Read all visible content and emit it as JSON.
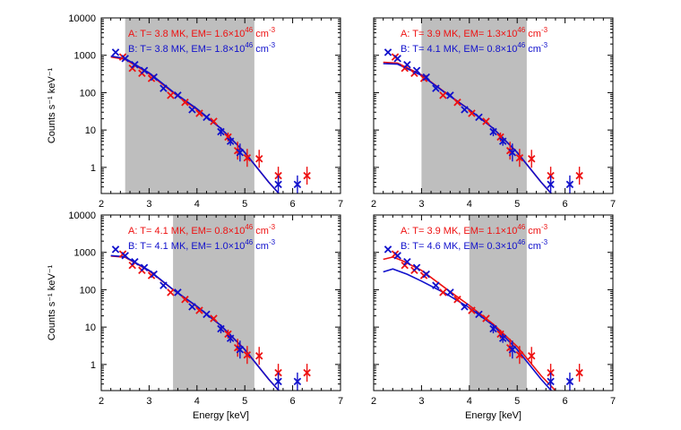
{
  "chart_data": [
    {
      "type": "scatter",
      "panel": "top-left",
      "xlabel": "",
      "ylabel": "Counts s⁻¹ keV⁻¹",
      "xlim": [
        2,
        7
      ],
      "ylim": [
        0.2,
        10000
      ],
      "ylog": true,
      "xticks": [
        "2",
        "3",
        "4",
        "5",
        "6",
        "7"
      ],
      "yticks": [
        "1",
        "10",
        "100",
        "1000",
        "10000"
      ],
      "shaded_range": [
        2.5,
        5.2
      ],
      "legend": [
        {
          "name": "A",
          "color": "#ee1111",
          "line1": "A: T= 3.8 MK, EM= 1.6×10",
          "exp": "46",
          "unit": " cm",
          "unit_exp": "-3"
        },
        {
          "name": "B",
          "color": "#1111cc",
          "line1": "B: T= 3.8 MK, EM= 1.8×10",
          "exp": "46",
          "unit": " cm",
          "unit_exp": "-3"
        }
      ],
      "series": [
        {
          "name": "A data",
          "color": "#ee1111",
          "x": [
            2.45,
            2.65,
            2.85,
            3.05,
            3.45,
            3.75,
            4.05,
            4.35,
            4.65,
            4.85,
            5.05,
            5.3,
            5.7,
            6.3
          ],
          "y": [
            900,
            450,
            330,
            240,
            85,
            55,
            28,
            17,
            6.5,
            2.8,
            1.8,
            1.7,
            0.6,
            0.6
          ]
        },
        {
          "name": "B data",
          "color": "#1111cc",
          "x": [
            2.3,
            2.5,
            2.7,
            2.9,
            3.1,
            3.3,
            3.6,
            3.9,
            4.2,
            4.5,
            4.7,
            4.9,
            5.7,
            6.1
          ],
          "y": [
            1200,
            820,
            560,
            390,
            260,
            130,
            85,
            35,
            22,
            9,
            5,
            2.5,
            0.35,
            0.35
          ]
        },
        {
          "name": "A model",
          "color": "#ee1111",
          "line": true,
          "x": [
            2.2,
            2.5,
            3.0,
            3.5,
            4.0,
            4.5,
            5.0,
            5.5,
            5.8
          ],
          "y": [
            900,
            780,
            320,
            100,
            35,
            11,
            2.5,
            0.4,
            0.15
          ]
        },
        {
          "name": "B model",
          "color": "#1111cc",
          "line": true,
          "x": [
            2.2,
            2.5,
            3.0,
            3.5,
            4.0,
            4.5,
            5.0,
            5.5,
            5.8
          ],
          "y": [
            950,
            820,
            340,
            105,
            37,
            11,
            2.5,
            0.4,
            0.15
          ]
        }
      ]
    },
    {
      "type": "scatter",
      "panel": "top-right",
      "xlabel": "",
      "ylabel": "",
      "xlim": [
        2,
        7
      ],
      "ylim": [
        0.2,
        10000
      ],
      "ylog": true,
      "xticks": [
        "2",
        "3",
        "4",
        "5",
        "6",
        "7"
      ],
      "yticks": [],
      "shaded_range": [
        3.0,
        5.2
      ],
      "legend": [
        {
          "name": "A",
          "color": "#ee1111",
          "line1": "A: T= 3.9 MK, EM= 1.3×10",
          "exp": "46",
          "unit": " cm",
          "unit_exp": "-3"
        },
        {
          "name": "B",
          "color": "#1111cc",
          "line1": "B: T= 4.1 MK, EM= 0.8×10",
          "exp": "46",
          "unit": " cm",
          "unit_exp": "-3"
        }
      ],
      "series": [
        {
          "name": "A data",
          "color": "#ee1111",
          "x": [
            2.45,
            2.65,
            2.85,
            3.05,
            3.45,
            3.75,
            4.05,
            4.35,
            4.65,
            4.85,
            5.05,
            5.3,
            5.7,
            6.3
          ],
          "y": [
            900,
            450,
            330,
            240,
            85,
            55,
            28,
            17,
            6.5,
            2.8,
            1.8,
            1.7,
            0.6,
            0.6
          ]
        },
        {
          "name": "B data",
          "color": "#1111cc",
          "x": [
            2.3,
            2.5,
            2.7,
            2.9,
            3.1,
            3.3,
            3.6,
            3.9,
            4.2,
            4.5,
            4.7,
            4.9,
            5.7,
            6.1
          ],
          "y": [
            1200,
            820,
            560,
            390,
            260,
            130,
            85,
            35,
            22,
            9,
            5,
            2.5,
            0.35,
            0.35
          ]
        },
        {
          "name": "A model",
          "color": "#ee1111",
          "line": true,
          "x": [
            2.2,
            2.5,
            3.0,
            3.5,
            4.0,
            4.5,
            5.0,
            5.5,
            5.8
          ],
          "y": [
            650,
            620,
            300,
            100,
            35,
            11,
            2.5,
            0.4,
            0.15
          ]
        },
        {
          "name": "B model",
          "color": "#1111cc",
          "line": true,
          "x": [
            2.2,
            2.5,
            3.0,
            3.5,
            4.0,
            4.5,
            5.0,
            5.5,
            5.8
          ],
          "y": [
            600,
            580,
            290,
            98,
            35,
            11,
            2.5,
            0.4,
            0.15
          ]
        }
      ]
    },
    {
      "type": "scatter",
      "panel": "bottom-left",
      "xlabel": "Energy [keV]",
      "ylabel": "Counts s⁻¹ keV⁻¹",
      "xlim": [
        2,
        7
      ],
      "ylim": [
        0.2,
        10000
      ],
      "ylog": true,
      "xticks": [
        "2",
        "3",
        "4",
        "5",
        "6",
        "7"
      ],
      "yticks": [
        "1",
        "10",
        "100",
        "1000",
        "10000"
      ],
      "shaded_range": [
        3.5,
        5.2
      ],
      "legend": [
        {
          "name": "A",
          "color": "#ee1111",
          "line1": "A: T= 4.1 MK, EM= 0.8×10",
          "exp": "46",
          "unit": " cm",
          "unit_exp": "-3"
        },
        {
          "name": "B",
          "color": "#1111cc",
          "line1": "B: T= 4.1 MK, EM= 1.0×10",
          "exp": "46",
          "unit": " cm",
          "unit_exp": "-3"
        }
      ],
      "series": [
        {
          "name": "A data",
          "color": "#ee1111",
          "x": [
            2.45,
            2.65,
            2.85,
            3.05,
            3.45,
            3.75,
            4.05,
            4.35,
            4.65,
            4.85,
            5.05,
            5.3,
            5.7,
            6.3
          ],
          "y": [
            900,
            450,
            330,
            240,
            85,
            55,
            28,
            17,
            6.5,
            2.8,
            1.8,
            1.7,
            0.6,
            0.6
          ]
        },
        {
          "name": "B data",
          "color": "#1111cc",
          "x": [
            2.3,
            2.5,
            2.7,
            2.9,
            3.1,
            3.3,
            3.6,
            3.9,
            4.2,
            4.5,
            4.7,
            4.9,
            5.7,
            6.1
          ],
          "y": [
            1200,
            820,
            560,
            390,
            260,
            130,
            85,
            35,
            22,
            9,
            5,
            2.5,
            0.35,
            0.35
          ]
        },
        {
          "name": "A model",
          "color": "#ee1111",
          "line": true,
          "x": [
            2.2,
            2.5,
            3.0,
            3.5,
            4.0,
            4.5,
            5.0,
            5.5,
            5.8
          ],
          "y": [
            800,
            740,
            320,
            100,
            35,
            11,
            2.5,
            0.4,
            0.15
          ]
        },
        {
          "name": "B model",
          "color": "#1111cc",
          "line": true,
          "x": [
            2.2,
            2.5,
            3.0,
            3.5,
            4.0,
            4.5,
            5.0,
            5.5,
            5.8
          ],
          "y": [
            820,
            760,
            330,
            102,
            36,
            11,
            2.5,
            0.4,
            0.15
          ]
        }
      ]
    },
    {
      "type": "scatter",
      "panel": "bottom-right",
      "xlabel": "Energy [keV]",
      "ylabel": "",
      "xlim": [
        2,
        7
      ],
      "ylim": [
        0.2,
        10000
      ],
      "ylog": true,
      "xticks": [
        "2",
        "3",
        "4",
        "5",
        "6",
        "7"
      ],
      "yticks": [],
      "shaded_range": [
        4.0,
        5.2
      ],
      "legend": [
        {
          "name": "A",
          "color": "#ee1111",
          "line1": "A: T= 3.9 MK, EM= 1.1×10",
          "exp": "46",
          "unit": " cm",
          "unit_exp": "-3"
        },
        {
          "name": "B",
          "color": "#1111cc",
          "line1": "B: T= 4.6 MK, EM= 0.3×10",
          "exp": "46",
          "unit": " cm",
          "unit_exp": "-3"
        }
      ],
      "series": [
        {
          "name": "A data",
          "color": "#ee1111",
          "x": [
            2.45,
            2.65,
            2.85,
            3.05,
            3.45,
            3.75,
            4.05,
            4.35,
            4.65,
            4.85,
            5.05,
            5.3,
            5.7,
            6.3
          ],
          "y": [
            900,
            450,
            330,
            240,
            85,
            55,
            28,
            17,
            6.5,
            2.8,
            1.8,
            1.7,
            0.6,
            0.6
          ]
        },
        {
          "name": "B data",
          "color": "#1111cc",
          "x": [
            2.3,
            2.5,
            2.7,
            2.9,
            3.1,
            3.3,
            3.6,
            3.9,
            4.2,
            4.5,
            4.7,
            4.9,
            5.7,
            6.1
          ],
          "y": [
            1200,
            820,
            560,
            390,
            260,
            130,
            85,
            35,
            22,
            9,
            5,
            2.5,
            0.35,
            0.35
          ]
        },
        {
          "name": "A model",
          "color": "#ee1111",
          "line": true,
          "x": [
            2.2,
            2.4,
            2.6,
            3.0,
            3.5,
            4.0,
            4.5,
            5.0,
            5.5,
            5.8
          ],
          "y": [
            650,
            750,
            600,
            330,
            110,
            38,
            12,
            3,
            0.5,
            0.2
          ]
        },
        {
          "name": "B model",
          "color": "#1111cc",
          "line": true,
          "x": [
            2.2,
            2.4,
            2.7,
            3.0,
            3.5,
            4.0,
            4.5,
            5.0,
            5.5,
            5.8
          ],
          "y": [
            300,
            360,
            260,
            170,
            80,
            33,
            11,
            2.5,
            0.4,
            0.15
          ]
        }
      ]
    }
  ]
}
